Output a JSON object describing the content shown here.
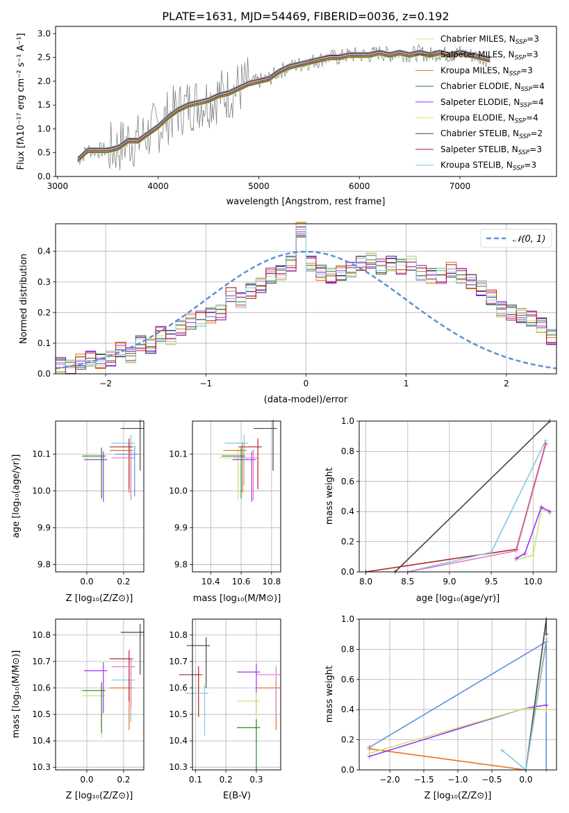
{
  "title": "PLATE=1631, MJD=54469, FIBERID=0036, z=0.192",
  "colors": [
    "#e377c2",
    "#4b0082",
    "#e8701a",
    "#2e7d32",
    "#9b30ff",
    "#c6e86a",
    "#444444",
    "#b22222",
    "#7ec8e3",
    "#5b8fd9"
  ],
  "chart_data": [
    {
      "id": "spectrum",
      "type": "line",
      "xlabel": "wavelength [Angstrom, rest frame]",
      "ylabel": "Flux [fλ10⁻¹⁷ erg cm⁻² s⁻¹ A⁻¹]",
      "xlim": [
        2980,
        7960
      ],
      "ylim": [
        0,
        3.15
      ],
      "xticks": [
        "3000",
        "4000",
        "5000",
        "6000",
        "7000"
      ],
      "yticks": [
        "0.0",
        "0.5",
        "1.0",
        "1.5",
        "2.0",
        "2.5",
        "3.0"
      ],
      "x": [
        3200,
        3300,
        3400,
        3500,
        3600,
        3700,
        3800,
        3900,
        4000,
        4100,
        4200,
        4300,
        4400,
        4500,
        4600,
        4700,
        4800,
        4900,
        5000,
        5100,
        5200,
        5300,
        5400,
        5500,
        5600,
        5700,
        5800,
        5900,
        6000,
        6100,
        6200,
        6300,
        6400,
        6500,
        6600,
        6700,
        6800,
        6900,
        7000,
        7100,
        7200,
        7300
      ],
      "data_y": [
        0.35,
        0.55,
        0.55,
        0.55,
        0.6,
        0.75,
        0.75,
        0.9,
        1.05,
        1.25,
        1.4,
        1.5,
        1.55,
        1.6,
        1.7,
        1.75,
        1.85,
        1.95,
        2.0,
        2.05,
        2.2,
        2.3,
        2.35,
        2.4,
        2.45,
        2.5,
        2.5,
        2.55,
        2.55,
        2.55,
        2.6,
        2.55,
        2.6,
        2.55,
        2.6,
        2.55,
        2.6,
        2.55,
        2.6,
        2.55,
        2.5,
        2.45
      ],
      "legend": [
        {
          "label": "Chabrier MILES, N",
          "sub": "SSP",
          "tail": "=3",
          "color": "#c6e86a"
        },
        {
          "label": "Salpeter MILES, N",
          "sub": "SSP",
          "tail": "=3",
          "color": "#444444"
        },
        {
          "label": "Kroupa MILES, N",
          "sub": "SSP",
          "tail": "=3",
          "color": "#e8701a"
        },
        {
          "label": "Chabrier ELODIE, N",
          "sub": "SSP",
          "tail": "=4",
          "color": "#2e7d32"
        },
        {
          "label": "Salpeter ELODIE, N",
          "sub": "SSP",
          "tail": "=4",
          "color": "#9b30ff"
        },
        {
          "label": "Kroupa ELODIE, N",
          "sub": "SSP",
          "tail": "=4",
          "color": "#c6e86a"
        },
        {
          "label": "Chabrier STELIB, N",
          "sub": "SSP",
          "tail": "=2",
          "color": "#444444"
        },
        {
          "label": "Salpeter STELIB, N",
          "sub": "SSP",
          "tail": "=3",
          "color": "#b22222"
        },
        {
          "label": "Kroupa STELIB, N",
          "sub": "SSP",
          "tail": "=3",
          "color": "#7ec8e3"
        }
      ],
      "legend_position": "upper-right"
    },
    {
      "id": "residuals",
      "type": "line",
      "xlabel": "(data-model)/error",
      "ylabel": "Normed distribution",
      "xlim": [
        -2.5,
        2.5
      ],
      "ylim": [
        0,
        0.49
      ],
      "xticks": [
        "−2",
        "−1",
        "0",
        "1",
        "2"
      ],
      "yticks": [
        "0.0",
        "0.1",
        "0.2",
        "0.3",
        "0.4"
      ],
      "gaussian_label": "𝒩(0, 1)",
      "legend_position": "upper-right",
      "bin_width": 0.1,
      "bin_start": -2.5,
      "hist_values": [
        0.03,
        0.02,
        0.04,
        0.05,
        0.04,
        0.05,
        0.08,
        0.06,
        0.1,
        0.09,
        0.13,
        0.12,
        0.15,
        0.17,
        0.18,
        0.19,
        0.2,
        0.26,
        0.24,
        0.27,
        0.29,
        0.32,
        0.33,
        0.36,
        0.47,
        0.36,
        0.33,
        0.32,
        0.33,
        0.34,
        0.36,
        0.37,
        0.35,
        0.36,
        0.35,
        0.36,
        0.33,
        0.32,
        0.32,
        0.34,
        0.32,
        0.3,
        0.28,
        0.25,
        0.21,
        0.2,
        0.19,
        0.18,
        0.16,
        0.12
      ]
    },
    {
      "id": "age-vs-Z",
      "type": "scatter",
      "xlabel": "Z [log₁₀(Z/Z⊙)]",
      "ylabel": "age  [log₁₀(age/yr)]",
      "xlim": [
        -0.17,
        0.31
      ],
      "ylim": [
        9.78,
        10.19
      ],
      "xticks": [
        "0.0",
        "0.2"
      ],
      "yticks": [
        "9.8",
        "9.9",
        "10.0",
        "10.1"
      ],
      "points": [
        {
          "x": 0.08,
          "y": 10.09,
          "c": "#c6e86a"
        },
        {
          "x": 0.09,
          "y": 10.085,
          "c": "#9b30ff"
        },
        {
          "x": 0.23,
          "y": 10.11,
          "c": "#e8701a"
        },
        {
          "x": 0.24,
          "y": 10.13,
          "c": "#7ec8e3"
        },
        {
          "x": 0.23,
          "y": 10.12,
          "c": "#b22222"
        },
        {
          "x": 0.08,
          "y": 10.095,
          "c": "#2e7d32"
        },
        {
          "x": 0.29,
          "y": 10.17,
          "c": "#444444"
        },
        {
          "x": 0.24,
          "y": 10.09,
          "c": "#e377c2"
        },
        {
          "x": 0.26,
          "y": 10.1,
          "c": "#5b8fd9"
        }
      ]
    },
    {
      "id": "age-vs-mass",
      "type": "scatter",
      "xlabel": "mass [log₁₀(M/M⊙)]",
      "ylabel": "",
      "xlim": [
        10.28,
        10.86
      ],
      "ylim": [
        9.78,
        10.19
      ],
      "xticks": [
        "10.4",
        "10.6",
        "10.8"
      ],
      "yticks": [
        "9.8",
        "9.9",
        "10.0",
        "10.1"
      ],
      "points": [
        {
          "x": 10.58,
          "y": 10.09,
          "c": "#c6e86a"
        },
        {
          "x": 10.67,
          "y": 10.085,
          "c": "#9b30ff"
        },
        {
          "x": 10.61,
          "y": 10.11,
          "c": "#e8701a"
        },
        {
          "x": 10.62,
          "y": 10.13,
          "c": "#7ec8e3"
        },
        {
          "x": 10.71,
          "y": 10.12,
          "c": "#b22222"
        },
        {
          "x": 10.6,
          "y": 10.095,
          "c": "#2e7d32"
        },
        {
          "x": 10.81,
          "y": 10.17,
          "c": "#444444"
        },
        {
          "x": 10.68,
          "y": 10.09,
          "c": "#e377c2"
        }
      ]
    },
    {
      "id": "weight-vs-age",
      "type": "line",
      "xlabel": "age  [log₁₀(age/yr)]",
      "ylabel": "mass weight",
      "xlim": [
        7.92,
        10.28
      ],
      "ylim": [
        0,
        1.0
      ],
      "xticks": [
        "8.0",
        "8.5",
        "9.0",
        "9.5",
        "10.0"
      ],
      "yticks": [
        "0.0",
        "0.2",
        "0.4",
        "0.6",
        "0.8",
        "1.0"
      ],
      "series": [
        {
          "c": "#444444",
          "x": [
            8.35,
            10.2
          ],
          "y": [
            0.0,
            1.0
          ]
        },
        {
          "c": "#b22222",
          "x": [
            8.0,
            9.8,
            10.15
          ],
          "y": [
            0.0,
            0.15,
            0.85
          ]
        },
        {
          "c": "#7ec8e3",
          "x": [
            8.5,
            9.5,
            10.15
          ],
          "y": [
            0.0,
            0.13,
            0.87
          ]
        },
        {
          "c": "#e377c2",
          "x": [
            8.5,
            9.8,
            10.15
          ],
          "y": [
            0.0,
            0.14,
            0.84
          ]
        },
        {
          "c": "#c6e86a",
          "x": [
            9.8,
            10.0,
            10.1,
            10.2
          ],
          "y": [
            0.08,
            0.11,
            0.42,
            0.39
          ]
        },
        {
          "c": "#9b30ff",
          "x": [
            9.8,
            9.9,
            10.1,
            10.2
          ],
          "y": [
            0.09,
            0.12,
            0.43,
            0.4
          ]
        }
      ]
    },
    {
      "id": "mass-vs-Z",
      "type": "scatter",
      "xlabel": "Z [log₁₀(Z/Z⊙)]",
      "ylabel": "mass [log₁₀(M/M⊙)]",
      "xlim": [
        -0.17,
        0.31
      ],
      "ylim": [
        10.29,
        10.86
      ],
      "xticks": [
        "0.0",
        "0.2"
      ],
      "yticks": [
        "10.3",
        "10.4",
        "10.5",
        "10.6",
        "10.7",
        "10.8"
      ],
      "points": [
        {
          "x": 0.08,
          "y": 10.57,
          "c": "#c6e86a"
        },
        {
          "x": 0.09,
          "y": 10.665,
          "c": "#9b30ff"
        },
        {
          "x": 0.23,
          "y": 10.6,
          "c": "#e8701a"
        },
        {
          "x": 0.24,
          "y": 10.63,
          "c": "#7ec8e3"
        },
        {
          "x": 0.23,
          "y": 10.71,
          "c": "#b22222"
        },
        {
          "x": 0.08,
          "y": 10.59,
          "c": "#2e7d32"
        },
        {
          "x": 0.29,
          "y": 10.81,
          "c": "#444444"
        },
        {
          "x": 0.24,
          "y": 10.68,
          "c": "#e377c2"
        }
      ]
    },
    {
      "id": "mass-vs-ebv",
      "type": "scatter",
      "xlabel": "E(B-V)",
      "ylabel": "",
      "xlim": [
        0.09,
        0.38
      ],
      "ylim": [
        10.29,
        10.86
      ],
      "xticks": [
        "0.1",
        "0.2",
        "0.3"
      ],
      "yticks": [
        "10.3",
        "10.4",
        "10.5",
        "10.6",
        "10.7",
        "10.8"
      ],
      "points": [
        {
          "x": 0.11,
          "y": 10.65,
          "c": "#b22222"
        },
        {
          "x": 0.13,
          "y": 10.58,
          "c": "#7ec8e3"
        },
        {
          "x": 0.135,
          "y": 10.76,
          "c": "#444444"
        },
        {
          "x": 0.3,
          "y": 10.66,
          "c": "#9b30ff"
        },
        {
          "x": 0.3,
          "y": 10.55,
          "c": "#c6e86a"
        },
        {
          "x": 0.3,
          "y": 10.45,
          "c": "#2e7d32"
        },
        {
          "x": 0.365,
          "y": 10.6,
          "c": "#e8701a"
        },
        {
          "x": 0.365,
          "y": 10.65,
          "c": "#e377c2"
        }
      ]
    },
    {
      "id": "weight-vs-Z",
      "type": "line",
      "xlabel": "Z [log₁₀(Z/Z⊙)]",
      "ylabel": "mass weight",
      "xlim": [
        -2.45,
        0.45
      ],
      "ylim": [
        0,
        1.0
      ],
      "xticks": [
        "−2.0",
        "−1.5",
        "−1.0",
        "−0.5",
        "0.0"
      ],
      "yticks": [
        "0.0",
        "0.2",
        "0.4",
        "0.6",
        "0.8",
        "1.0"
      ],
      "series": [
        {
          "c": "#5b8fd9",
          "x": [
            -2.3,
            0.3,
            0.3
          ],
          "y": [
            0.15,
            0.85,
            0.0
          ]
        },
        {
          "c": "#e8701a",
          "x": [
            -2.3,
            0.0,
            0.3
          ],
          "y": [
            0.14,
            0.0,
            0.85
          ]
        },
        {
          "c": "#9b30ff",
          "x": [
            -2.3,
            0.0,
            0.3
          ],
          "y": [
            0.09,
            0.41,
            0.43
          ]
        },
        {
          "c": "#c6e86a",
          "x": [
            -2.3,
            0.0,
            0.3
          ],
          "y": [
            0.11,
            0.41,
            0.4
          ]
        },
        {
          "c": "#444444",
          "x": [
            0.0,
            0.3,
            0.3
          ],
          "y": [
            0.0,
            1.0,
            0.9
          ]
        },
        {
          "c": "#7ec8e3",
          "x": [
            -0.35,
            0.0,
            0.3
          ],
          "y": [
            0.13,
            0.0,
            0.87
          ]
        }
      ]
    }
  ]
}
